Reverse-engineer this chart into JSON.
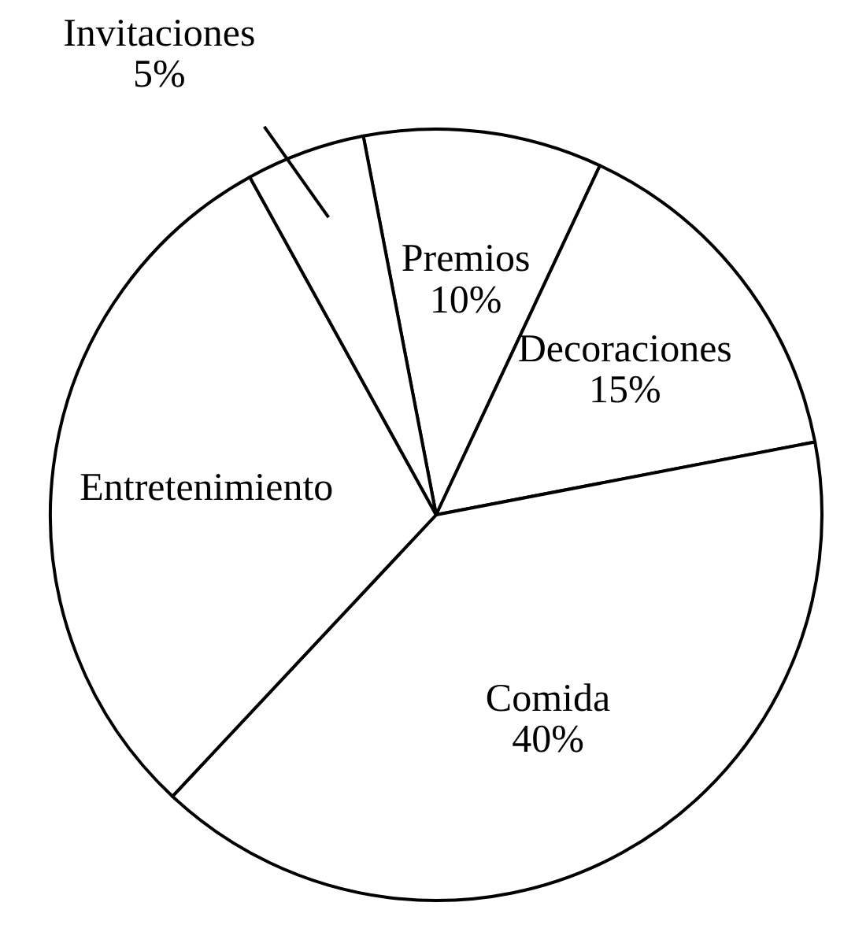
{
  "chart_data": {
    "type": "pie",
    "categories": [
      "Premios",
      "Decoraciones",
      "Comida",
      "Entretenimiento",
      "Invitaciones"
    ],
    "values": [
      10,
      15,
      40,
      30,
      5
    ],
    "value_labels": [
      "10%",
      "15%",
      "40%",
      null,
      "5%"
    ],
    "colors": [
      "#ffffff",
      "#ffffff",
      "#ffffff",
      "#ffffff",
      "#ffffff"
    ]
  }
}
